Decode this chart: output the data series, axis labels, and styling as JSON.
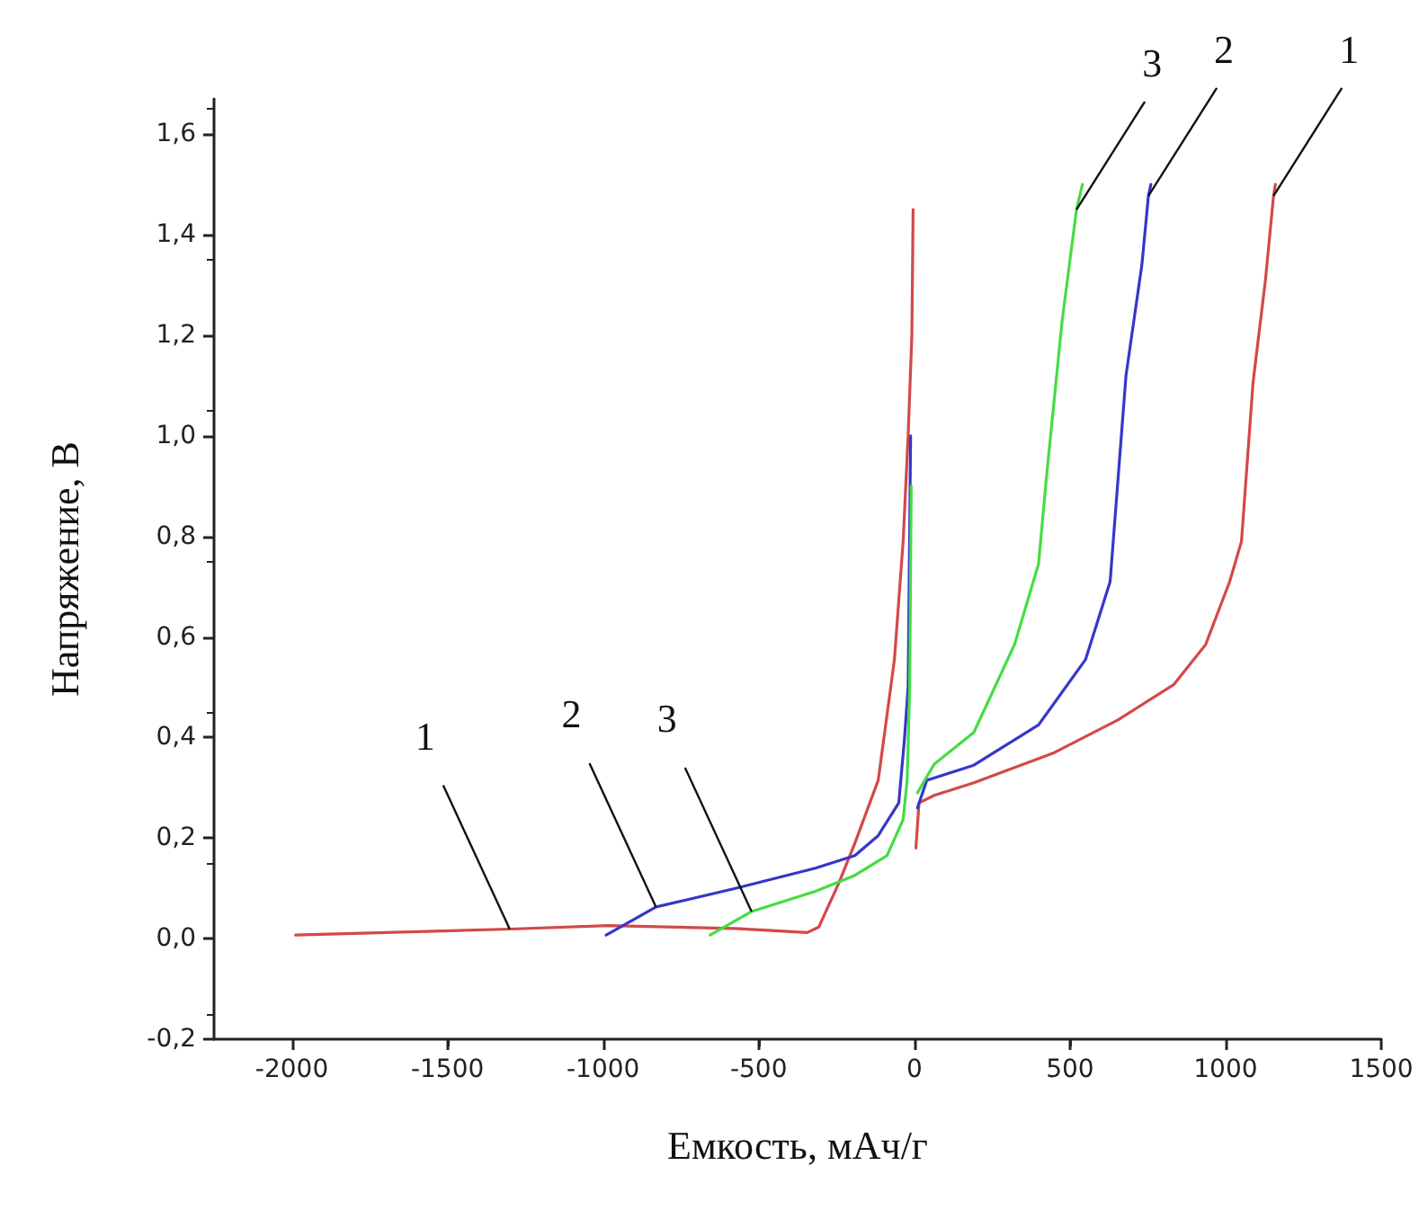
{
  "chart_data": {
    "type": "line",
    "xlabel": "Емкость, мАч/г",
    "ylabel": "Напряжение, В",
    "xlim": [
      -2250,
      1500
    ],
    "xticks": [
      -2000,
      -1500,
      -1000,
      -500,
      0,
      500,
      1000,
      1500
    ],
    "ylim": [
      -0.2,
      1.67
    ],
    "yticks": [
      {
        "value": -0.2,
        "label": "-0,2"
      },
      {
        "value": 0,
        "label": "0,0"
      },
      {
        "value": 0.2,
        "label": "0,2"
      },
      {
        "value": 0.4,
        "label": "0,4"
      },
      {
        "value": 0.6,
        "label": "0,6"
      },
      {
        "value": 0.8,
        "label": "0,8"
      },
      {
        "value": 1.0,
        "label": "1,0"
      },
      {
        "value": 1.2,
        "label": "1,2"
      },
      {
        "value": 1.4,
        "label": "1,4"
      },
      {
        "value": 1.6,
        "label": "1,6"
      }
    ],
    "grid": false,
    "marker": "none",
    "line_style": "solid",
    "series": [
      {
        "color": "#d44848",
        "x": [
          -1988,
          -1300,
          -984,
          -575,
          -344,
          -307,
          -243,
          -191,
          -116,
          -64,
          -36,
          -20,
          -8,
          -4,
          null,
          5,
          15,
          64,
          191,
          450,
          654,
          833,
          936,
          1013,
          1051,
          1088,
          1128,
          1154,
          1160
        ],
        "values": [
          0.007,
          0.019,
          0.026,
          0.02,
          0.012,
          0.023,
          0.11,
          0.19,
          0.315,
          0.555,
          0.79,
          1.0,
          1.2,
          1.45,
          null,
          0.18,
          0.27,
          0.285,
          0.31,
          0.37,
          0.435,
          0.505,
          0.585,
          0.71,
          0.79,
          1.105,
          1.31,
          1.477,
          1.5
        ]
      },
      {
        "color": "#3636cc",
        "x": [
          -990,
          -830,
          -575,
          -318,
          -191,
          -116,
          -50,
          -32,
          -20,
          -12,
          null,
          10,
          40,
          191,
          399,
          550,
          629,
          680,
          731,
          752,
          760
        ],
        "values": [
          0.007,
          0.063,
          0.1,
          0.14,
          0.165,
          0.205,
          0.27,
          0.395,
          0.5,
          1.0,
          null,
          0.26,
          0.315,
          0.345,
          0.425,
          0.555,
          0.71,
          1.12,
          1.34,
          1.477,
          1.5
        ]
      },
      {
        "color": "#44dd44",
        "x": [
          -656,
          -523,
          -318,
          -191,
          -88,
          -36,
          -23,
          -15,
          -10,
          null,
          10,
          64,
          191,
          322,
          399,
          424,
          475,
          521,
          540
        ],
        "values": [
          0.007,
          0.054,
          0.094,
          0.126,
          0.165,
          0.237,
          0.316,
          0.5,
          0.9,
          null,
          0.29,
          0.347,
          0.41,
          0.585,
          0.745,
          0.915,
          1.23,
          1.45,
          1.5
        ]
      }
    ],
    "annotations": [
      {
        "text": "3",
        "x": 521,
        "y": 1.45
      },
      {
        "text": "2",
        "x": 752,
        "y": 1.477
      },
      {
        "text": "1",
        "x": 1154,
        "y": 1.477
      },
      {
        "text": "1",
        "x": -1300,
        "y": 0.019
      },
      {
        "text": "2",
        "x": -830,
        "y": 0.063
      },
      {
        "text": "3",
        "x": -523,
        "y": 0.054
      }
    ]
  }
}
